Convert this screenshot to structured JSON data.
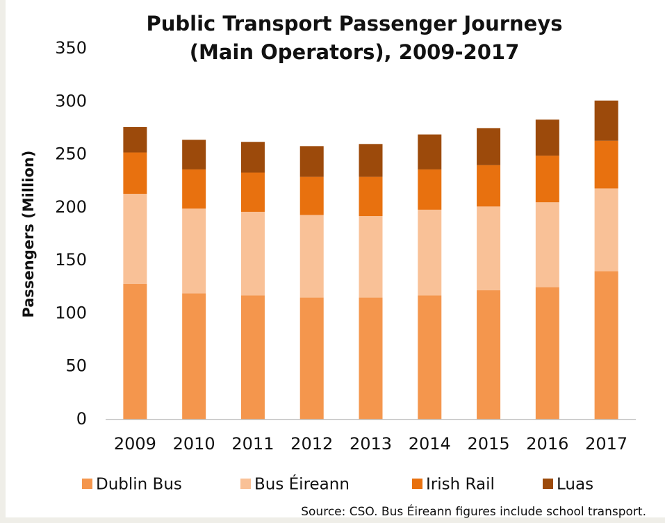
{
  "chart_data": {
    "type": "stacked_bar",
    "title_lines": [
      "Public Transport Passenger Journeys",
      "(Main Operators), 2009-2017"
    ],
    "y_label": "Passengers (Million)",
    "source": "Source: CSO. Bus Éireann figures include school transport.",
    "categories": [
      "2009",
      "2010",
      "2011",
      "2012",
      "2013",
      "2014",
      "2015",
      "2016",
      "2017"
    ],
    "series": [
      {
        "name": "Dublin Bus",
        "color": "#f4964d",
        "values": [
          128,
          119,
          117,
          115,
          115,
          117,
          122,
          125,
          140
        ]
      },
      {
        "name": "Bus Éireann",
        "color": "#f9c197",
        "values": [
          85,
          80,
          79,
          78,
          77,
          81,
          79,
          80,
          78
        ]
      },
      {
        "name": "Irish Rail",
        "color": "#e8710f",
        "values": [
          39,
          37,
          37,
          36,
          37,
          38,
          39,
          44,
          45
        ]
      },
      {
        "name": "Luas",
        "color": "#9c4a0b",
        "values": [
          24,
          28,
          29,
          29,
          31,
          33,
          35,
          34,
          38
        ]
      }
    ],
    "ylim": [
      0,
      350
    ],
    "yticks": [
      0,
      50,
      100,
      150,
      200,
      250,
      300,
      350
    ],
    "grid": false,
    "legend": "bottom"
  }
}
